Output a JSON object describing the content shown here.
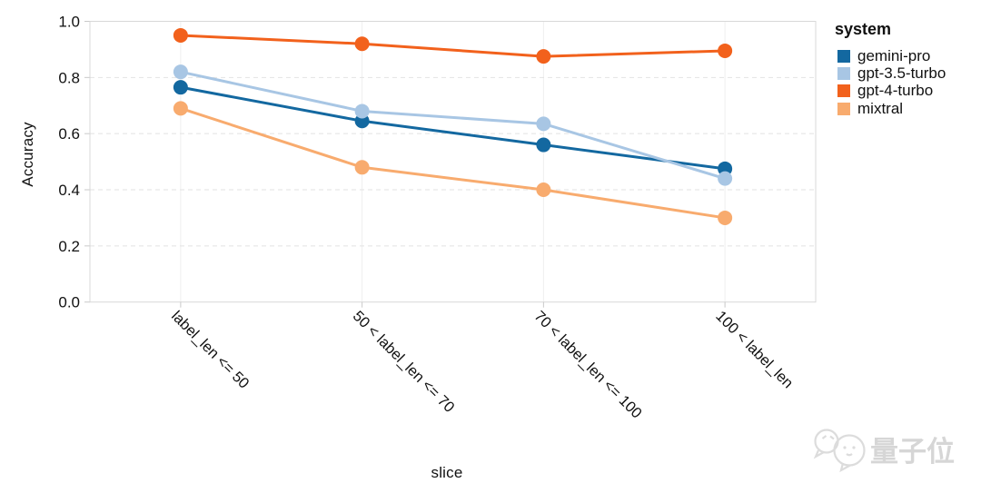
{
  "chart_data": {
    "type": "line",
    "title": "",
    "xlabel": "slice",
    "ylabel": "Accuracy",
    "ylim": [
      0.0,
      1.0
    ],
    "yticks": [
      "1.0",
      "0.8",
      "0.6",
      "0.4",
      "0.2",
      "0.0"
    ],
    "ytick_values": [
      1.0,
      0.8,
      0.6,
      0.4,
      0.2,
      0.0
    ],
    "grid": true,
    "legend_title": "system",
    "legend_position": "right",
    "categories": [
      "label_len <= 50",
      "50 < label_len <= 70",
      "70 < label_len <= 100",
      "100 < label_len"
    ],
    "series": [
      {
        "name": "gemini-pro",
        "color": "#1368a0",
        "values": [
          0.765,
          0.645,
          0.56,
          0.475
        ]
      },
      {
        "name": "gpt-3.5-turbo",
        "color": "#a8c6e4",
        "values": [
          0.82,
          0.68,
          0.635,
          0.44
        ]
      },
      {
        "name": "gpt-4-turbo",
        "color": "#f2611c",
        "values": [
          0.95,
          0.92,
          0.875,
          0.895
        ]
      },
      {
        "name": "mixtral",
        "color": "#f8ab6e",
        "values": [
          0.69,
          0.48,
          0.4,
          0.3
        ]
      }
    ]
  },
  "watermark": {
    "text": "量子位"
  }
}
